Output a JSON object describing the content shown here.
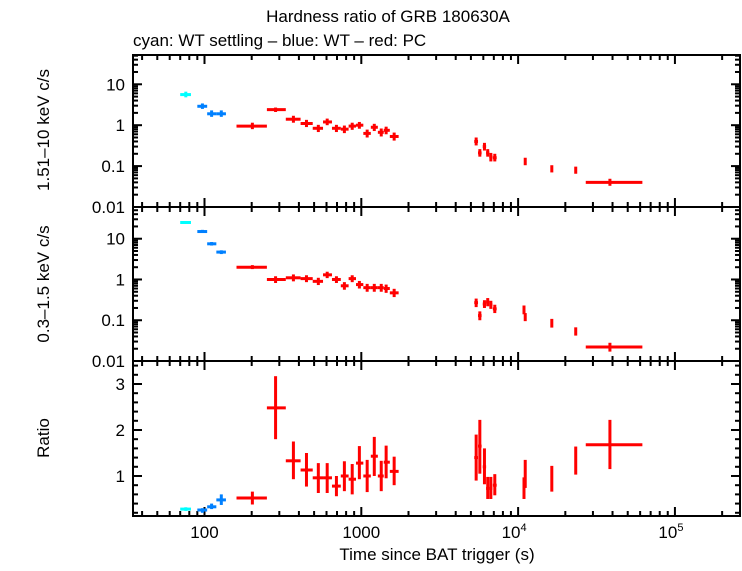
{
  "chart_data": [
    {
      "type": "scatter",
      "panel": "top",
      "title": "Hardness ratio of GRB 180630A",
      "subtitle": "cyan: WT settling – blue: WT – red: PC",
      "ylabel": "1.51–10 keV c/s",
      "xscale": "log",
      "yscale": "log",
      "xlim": [
        35,
        260000
      ],
      "ylim": [
        0.01,
        52
      ],
      "ytick_labels": [
        {
          "v": 10,
          "label": "10"
        },
        {
          "v": 1,
          "label": "1"
        },
        {
          "v": 0.1,
          "label": "0.1"
        },
        {
          "v": 0.01,
          "label": "0.01"
        }
      ],
      "series": [
        {
          "name": "WT settling",
          "color": "#00ffff",
          "points": [
            {
              "x": 76,
              "xlo": 70,
              "xhi": 82,
              "y": 5.6,
              "ylo": 4.8,
              "yhi": 6.6
            }
          ]
        },
        {
          "name": "WT",
          "color": "#0080ff",
          "points": [
            {
              "x": 97,
              "xlo": 90,
              "xhi": 104,
              "y": 2.9,
              "ylo": 2.5,
              "yhi": 3.4
            },
            {
              "x": 111,
              "xlo": 104,
              "xhi": 119,
              "y": 1.9,
              "ylo": 1.6,
              "yhi": 2.3
            },
            {
              "x": 128,
              "xlo": 119,
              "xhi": 137,
              "y": 1.9,
              "ylo": 1.6,
              "yhi": 2.3
            }
          ]
        },
        {
          "name": "PC",
          "color": "#ff0000",
          "points": [
            {
              "x": 202,
              "xlo": 160,
              "xhi": 250,
              "y": 0.95,
              "ylo": 0.8,
              "yhi": 1.15
            },
            {
              "x": 284,
              "xlo": 250,
              "xhi": 330,
              "y": 2.4,
              "ylo": 2.1,
              "yhi": 2.7
            },
            {
              "x": 369,
              "xlo": 330,
              "xhi": 410,
              "y": 1.4,
              "ylo": 1.15,
              "yhi": 1.7
            },
            {
              "x": 447,
              "xlo": 410,
              "xhi": 490,
              "y": 1.1,
              "ylo": 0.9,
              "yhi": 1.35
            },
            {
              "x": 532,
              "xlo": 490,
              "xhi": 570,
              "y": 0.84,
              "ylo": 0.68,
              "yhi": 1.02
            },
            {
              "x": 606,
              "xlo": 570,
              "xhi": 650,
              "y": 1.2,
              "ylo": 1.0,
              "yhi": 1.45
            },
            {
              "x": 694,
              "xlo": 650,
              "xhi": 740,
              "y": 0.84,
              "ylo": 0.68,
              "yhi": 1.02
            },
            {
              "x": 780,
              "xlo": 740,
              "xhi": 830,
              "y": 0.8,
              "ylo": 0.64,
              "yhi": 0.98
            },
            {
              "x": 875,
              "xlo": 830,
              "xhi": 925,
              "y": 0.95,
              "ylo": 0.77,
              "yhi": 1.15
            },
            {
              "x": 972,
              "xlo": 925,
              "xhi": 1030,
              "y": 1.0,
              "ylo": 0.82,
              "yhi": 1.2
            },
            {
              "x": 1090,
              "xlo": 1030,
              "xhi": 1150,
              "y": 0.63,
              "ylo": 0.5,
              "yhi": 0.78
            },
            {
              "x": 1210,
              "xlo": 1150,
              "xhi": 1275,
              "y": 0.89,
              "ylo": 0.72,
              "yhi": 1.08
            },
            {
              "x": 1340,
              "xlo": 1275,
              "xhi": 1390,
              "y": 0.67,
              "ylo": 0.53,
              "yhi": 0.83
            },
            {
              "x": 1440,
              "xlo": 1390,
              "xhi": 1520,
              "y": 0.75,
              "ylo": 0.6,
              "yhi": 0.92
            },
            {
              "x": 1620,
              "xlo": 1520,
              "xhi": 1730,
              "y": 0.53,
              "ylo": 0.42,
              "yhi": 0.66
            },
            {
              "x": 5400,
              "xlo": 5250,
              "xhi": 5550,
              "y": 0.4,
              "ylo": 0.32,
              "yhi": 0.5
            },
            {
              "x": 5700,
              "xlo": 5550,
              "xhi": 5850,
              "y": 0.21,
              "ylo": 0.17,
              "yhi": 0.26
            },
            {
              "x": 6100,
              "xlo": 5950,
              "xhi": 6250,
              "y": 0.3,
              "ylo": 0.24,
              "yhi": 0.37
            },
            {
              "x": 6400,
              "xlo": 6250,
              "xhi": 6550,
              "y": 0.21,
              "ylo": 0.17,
              "yhi": 0.26
            },
            {
              "x": 6700,
              "xlo": 6550,
              "xhi": 6850,
              "y": 0.17,
              "ylo": 0.13,
              "yhi": 0.21
            },
            {
              "x": 7100,
              "xlo": 6900,
              "xhi": 7300,
              "y": 0.16,
              "ylo": 0.13,
              "yhi": 0.2
            },
            {
              "x": 11100,
              "xlo": 10900,
              "xhi": 11300,
              "y": 0.13,
              "ylo": 0.105,
              "yhi": 0.16
            },
            {
              "x": 16400,
              "xlo": 16200,
              "xhi": 16600,
              "y": 0.085,
              "ylo": 0.07,
              "yhi": 0.105
            },
            {
              "x": 23300,
              "xlo": 23000,
              "xhi": 23600,
              "y": 0.08,
              "ylo": 0.065,
              "yhi": 0.097
            },
            {
              "x": 38500,
              "xlo": 27000,
              "xhi": 62000,
              "y": 0.04,
              "ylo": 0.033,
              "yhi": 0.049
            }
          ]
        }
      ]
    },
    {
      "type": "scatter",
      "panel": "middle",
      "ylabel": "0.3–1.5 keV c/s",
      "xscale": "log",
      "yscale": "log",
      "xlim": [
        35,
        260000
      ],
      "ylim": [
        0.01,
        60
      ],
      "ytick_labels": [
        {
          "v": 10,
          "label": "10"
        },
        {
          "v": 1,
          "label": "1"
        },
        {
          "v": 0.1,
          "label": "0.1"
        },
        {
          "v": 0.01,
          "label": "0.01"
        }
      ],
      "series": [
        {
          "name": "WT settling",
          "color": "#00ffff",
          "points": [
            {
              "x": 76,
              "xlo": 70,
              "xhi": 82,
              "y": 25,
              "ylo": 23,
              "yhi": 27
            }
          ]
        },
        {
          "name": "WT",
          "color": "#0080ff",
          "points": [
            {
              "x": 97,
              "xlo": 90,
              "xhi": 104,
              "y": 15,
              "ylo": 14,
              "yhi": 16.5
            },
            {
              "x": 111,
              "xlo": 104,
              "xhi": 119,
              "y": 7.5,
              "ylo": 6.8,
              "yhi": 8.3
            },
            {
              "x": 128,
              "xlo": 119,
              "xhi": 137,
              "y": 4.7,
              "ylo": 4.2,
              "yhi": 5.2
            }
          ]
        },
        {
          "name": "PC",
          "color": "#ff0000",
          "points": [
            {
              "x": 202,
              "xlo": 160,
              "xhi": 250,
              "y": 2.0,
              "ylo": 1.8,
              "yhi": 2.25
            },
            {
              "x": 284,
              "xlo": 250,
              "xhi": 330,
              "y": 1.0,
              "ylo": 0.82,
              "yhi": 1.2
            },
            {
              "x": 369,
              "xlo": 330,
              "xhi": 410,
              "y": 1.1,
              "ylo": 0.9,
              "yhi": 1.33
            },
            {
              "x": 447,
              "xlo": 410,
              "xhi": 490,
              "y": 1.05,
              "ylo": 0.86,
              "yhi": 1.27
            },
            {
              "x": 532,
              "xlo": 490,
              "xhi": 570,
              "y": 0.9,
              "ylo": 0.73,
              "yhi": 1.1
            },
            {
              "x": 606,
              "xlo": 570,
              "xhi": 650,
              "y": 1.3,
              "ylo": 1.08,
              "yhi": 1.55
            },
            {
              "x": 694,
              "xlo": 650,
              "xhi": 740,
              "y": 1.0,
              "ylo": 0.82,
              "yhi": 1.2
            },
            {
              "x": 780,
              "xlo": 740,
              "xhi": 830,
              "y": 0.7,
              "ylo": 0.56,
              "yhi": 0.86
            },
            {
              "x": 875,
              "xlo": 830,
              "xhi": 925,
              "y": 1.05,
              "ylo": 0.86,
              "yhi": 1.27
            },
            {
              "x": 972,
              "xlo": 925,
              "xhi": 1030,
              "y": 0.75,
              "ylo": 0.6,
              "yhi": 0.92
            },
            {
              "x": 1090,
              "xlo": 1030,
              "xhi": 1150,
              "y": 0.63,
              "ylo": 0.5,
              "yhi": 0.78
            },
            {
              "x": 1210,
              "xlo": 1150,
              "xhi": 1275,
              "y": 0.63,
              "ylo": 0.5,
              "yhi": 0.78
            },
            {
              "x": 1340,
              "xlo": 1275,
              "xhi": 1390,
              "y": 0.63,
              "ylo": 0.5,
              "yhi": 0.78
            },
            {
              "x": 1440,
              "xlo": 1390,
              "xhi": 1520,
              "y": 0.6,
              "ylo": 0.47,
              "yhi": 0.75
            },
            {
              "x": 1620,
              "xlo": 1520,
              "xhi": 1730,
              "y": 0.47,
              "ylo": 0.37,
              "yhi": 0.59
            },
            {
              "x": 5400,
              "xlo": 5250,
              "xhi": 5550,
              "y": 0.27,
              "ylo": 0.21,
              "yhi": 0.34
            },
            {
              "x": 5700,
              "xlo": 5550,
              "xhi": 5850,
              "y": 0.13,
              "ylo": 0.1,
              "yhi": 0.165
            },
            {
              "x": 6100,
              "xlo": 5950,
              "xhi": 6250,
              "y": 0.25,
              "ylo": 0.2,
              "yhi": 0.31
            },
            {
              "x": 6400,
              "xlo": 6250,
              "xhi": 6550,
              "y": 0.28,
              "ylo": 0.22,
              "yhi": 0.35
            },
            {
              "x": 6700,
              "xlo": 6550,
              "xhi": 6850,
              "y": 0.24,
              "ylo": 0.19,
              "yhi": 0.3
            },
            {
              "x": 7100,
              "xlo": 6900,
              "xhi": 7300,
              "y": 0.19,
              "ylo": 0.15,
              "yhi": 0.24
            },
            {
              "x": 10900,
              "xlo": 10750,
              "xhi": 11050,
              "y": 0.18,
              "ylo": 0.14,
              "yhi": 0.23
            },
            {
              "x": 11100,
              "xlo": 10950,
              "xhi": 11250,
              "y": 0.12,
              "ylo": 0.095,
              "yhi": 0.15
            },
            {
              "x": 16400,
              "xlo": 16200,
              "xhi": 16600,
              "y": 0.085,
              "ylo": 0.066,
              "yhi": 0.108
            },
            {
              "x": 23300,
              "xlo": 23000,
              "xhi": 23600,
              "y": 0.053,
              "ylo": 0.042,
              "yhi": 0.067
            },
            {
              "x": 38500,
              "xlo": 27000,
              "xhi": 62000,
              "y": 0.022,
              "ylo": 0.017,
              "yhi": 0.028
            }
          ]
        }
      ]
    },
    {
      "type": "scatter",
      "panel": "bottom",
      "ylabel": "Ratio",
      "xlabel": "Time since BAT trigger (s)",
      "xscale": "log",
      "yscale": "linear",
      "xlim": [
        35,
        260000
      ],
      "ylim": [
        0.13,
        3.5
      ],
      "ytick_labels": [
        {
          "v": 3,
          "label": "3"
        },
        {
          "v": 2,
          "label": "2"
        },
        {
          "v": 1,
          "label": "1"
        }
      ],
      "xtick_labels": [
        {
          "v": 100,
          "label": "100"
        },
        {
          "v": 1000,
          "label": "1000"
        },
        {
          "v": 10000,
          "label": "10",
          "sup": "4"
        },
        {
          "v": 100000,
          "label": "10",
          "sup": "5"
        }
      ],
      "series": [
        {
          "name": "WT settling",
          "color": "#00ffff",
          "points": [
            {
              "x": 76,
              "xlo": 70,
              "xhi": 82,
              "y": 0.28,
              "ylo": 0.24,
              "yhi": 0.32
            }
          ]
        },
        {
          "name": "WT",
          "color": "#0080ff",
          "points": [
            {
              "x": 97,
              "xlo": 90,
              "xhi": 104,
              "y": 0.26,
              "ylo": 0.2,
              "yhi": 0.3
            },
            {
              "x": 111,
              "xlo": 104,
              "xhi": 119,
              "y": 0.33,
              "ylo": 0.28,
              "yhi": 0.4
            },
            {
              "x": 128,
              "xlo": 119,
              "xhi": 137,
              "y": 0.48,
              "ylo": 0.37,
              "yhi": 0.6
            }
          ]
        },
        {
          "name": "PC",
          "color": "#ff0000",
          "points": [
            {
              "x": 202,
              "xlo": 160,
              "xhi": 250,
              "y": 0.52,
              "ylo": 0.38,
              "yhi": 0.66
            },
            {
              "x": 284,
              "xlo": 250,
              "xhi": 330,
              "y": 2.48,
              "ylo": 1.8,
              "yhi": 3.17
            },
            {
              "x": 369,
              "xlo": 330,
              "xhi": 410,
              "y": 1.33,
              "ylo": 0.93,
              "yhi": 1.75
            },
            {
              "x": 447,
              "xlo": 410,
              "xhi": 490,
              "y": 1.13,
              "ylo": 0.77,
              "yhi": 1.5
            },
            {
              "x": 532,
              "xlo": 490,
              "xhi": 570,
              "y": 0.96,
              "ylo": 0.63,
              "yhi": 1.28
            },
            {
              "x": 606,
              "xlo": 570,
              "xhi": 650,
              "y": 0.96,
              "ylo": 0.63,
              "yhi": 1.28
            },
            {
              "x": 694,
              "xlo": 650,
              "xhi": 740,
              "y": 0.78,
              "ylo": 0.56,
              "yhi": 1.0
            },
            {
              "x": 780,
              "xlo": 740,
              "xhi": 830,
              "y": 1.0,
              "ylo": 0.67,
              "yhi": 1.32
            },
            {
              "x": 875,
              "xlo": 830,
              "xhi": 925,
              "y": 0.93,
              "ylo": 0.6,
              "yhi": 1.26
            },
            {
              "x": 972,
              "xlo": 925,
              "xhi": 1030,
              "y": 1.28,
              "ylo": 0.93,
              "yhi": 1.65
            },
            {
              "x": 1090,
              "xlo": 1030,
              "xhi": 1150,
              "y": 1.0,
              "ylo": 0.65,
              "yhi": 1.35
            },
            {
              "x": 1210,
              "xlo": 1150,
              "xhi": 1275,
              "y": 1.43,
              "ylo": 1.0,
              "yhi": 1.85
            },
            {
              "x": 1340,
              "xlo": 1275,
              "xhi": 1390,
              "y": 1.0,
              "ylo": 0.67,
              "yhi": 1.33
            },
            {
              "x": 1440,
              "xlo": 1390,
              "xhi": 1520,
              "y": 1.3,
              "ylo": 0.95,
              "yhi": 1.66
            },
            {
              "x": 1620,
              "xlo": 1520,
              "xhi": 1730,
              "y": 1.1,
              "ylo": 0.8,
              "yhi": 1.42
            },
            {
              "x": 5400,
              "xlo": 5250,
              "xhi": 5550,
              "y": 1.4,
              "ylo": 0.9,
              "yhi": 1.9
            },
            {
              "x": 5700,
              "xlo": 5550,
              "xhi": 5850,
              "y": 1.65,
              "ylo": 1.05,
              "yhi": 2.22
            },
            {
              "x": 6100,
              "xlo": 5950,
              "xhi": 6250,
              "y": 1.2,
              "ylo": 0.82,
              "yhi": 1.6
            },
            {
              "x": 6400,
              "xlo": 6250,
              "xhi": 6550,
              "y": 0.73,
              "ylo": 0.5,
              "yhi": 0.98
            },
            {
              "x": 6700,
              "xlo": 6550,
              "xhi": 6850,
              "y": 0.73,
              "ylo": 0.5,
              "yhi": 0.98
            },
            {
              "x": 7100,
              "xlo": 6900,
              "xhi": 7300,
              "y": 0.8,
              "ylo": 0.58,
              "yhi": 1.04
            },
            {
              "x": 10900,
              "xlo": 10750,
              "xhi": 11050,
              "y": 0.73,
              "ylo": 0.5,
              "yhi": 0.97
            },
            {
              "x": 11100,
              "xlo": 10950,
              "xhi": 11250,
              "y": 1.05,
              "ylo": 0.74,
              "yhi": 1.35
            },
            {
              "x": 16400,
              "xlo": 16200,
              "xhi": 16600,
              "y": 0.96,
              "ylo": 0.66,
              "yhi": 1.22
            },
            {
              "x": 23300,
              "xlo": 23000,
              "xhi": 23600,
              "y": 1.33,
              "ylo": 1.03,
              "yhi": 1.64
            },
            {
              "x": 38500,
              "xlo": 27000,
              "xhi": 62000,
              "y": 1.68,
              "ylo": 1.15,
              "yhi": 2.22
            }
          ]
        }
      ]
    }
  ]
}
